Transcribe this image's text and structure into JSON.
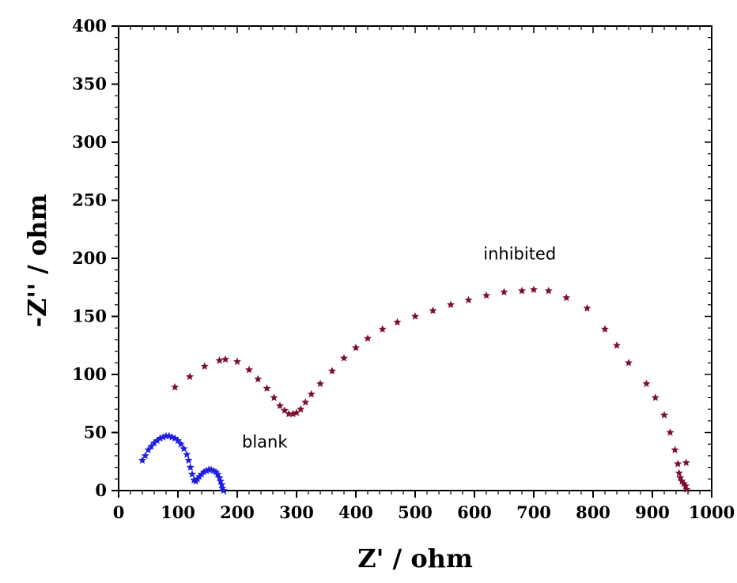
{
  "chart_data": {
    "type": "scatter",
    "xlabel": "Z' / ohm",
    "ylabel": "-Z'' / ohm",
    "xlim": [
      0,
      1000
    ],
    "ylim": [
      0,
      400
    ],
    "xticks": [
      "0",
      "100",
      "200",
      "300",
      "400",
      "500",
      "600",
      "700",
      "800",
      "900",
      "1000"
    ],
    "yticks": [
      "0",
      "50",
      "100",
      "150",
      "200",
      "250",
      "300",
      "350",
      "400"
    ],
    "grid": false,
    "legend": "none",
    "series": [
      {
        "color": "#1f1fe0",
        "marker": "star",
        "points": [
          [
            40,
            26
          ],
          [
            45,
            30
          ],
          [
            50,
            35
          ],
          [
            55,
            38
          ],
          [
            60,
            41
          ],
          [
            65,
            43
          ],
          [
            70,
            45
          ],
          [
            75,
            46
          ],
          [
            80,
            47
          ],
          [
            85,
            47
          ],
          [
            90,
            46
          ],
          [
            95,
            45
          ],
          [
            100,
            43
          ],
          [
            105,
            40
          ],
          [
            110,
            36
          ],
          [
            115,
            31
          ],
          [
            118,
            26
          ],
          [
            121,
            20
          ],
          [
            124,
            14
          ],
          [
            127,
            9
          ],
          [
            130,
            8
          ],
          [
            133,
            10
          ],
          [
            136,
            12
          ],
          [
            140,
            14
          ],
          [
            144,
            16
          ],
          [
            148,
            17
          ],
          [
            152,
            18
          ],
          [
            156,
            18
          ],
          [
            160,
            17
          ],
          [
            164,
            16
          ],
          [
            167,
            14
          ],
          [
            170,
            11
          ],
          [
            172,
            8
          ],
          [
            174,
            5
          ],
          [
            175,
            2
          ],
          [
            177,
            0
          ]
        ]
      },
      {
        "color": "#7a0f2e",
        "marker": "star",
        "points": [
          [
            95,
            89
          ],
          [
            120,
            98
          ],
          [
            145,
            107
          ],
          [
            170,
            112
          ],
          [
            180,
            113
          ],
          [
            200,
            111
          ],
          [
            220,
            104
          ],
          [
            235,
            96
          ],
          [
            250,
            88
          ],
          [
            262,
            80
          ],
          [
            272,
            73
          ],
          [
            280,
            69
          ],
          [
            287,
            66
          ],
          [
            294,
            66
          ],
          [
            300,
            67
          ],
          [
            307,
            70
          ],
          [
            315,
            76
          ],
          [
            325,
            83
          ],
          [
            340,
            92
          ],
          [
            360,
            103
          ],
          [
            380,
            114
          ],
          [
            400,
            123
          ],
          [
            420,
            131
          ],
          [
            445,
            139
          ],
          [
            470,
            145
          ],
          [
            500,
            150
          ],
          [
            530,
            155
          ],
          [
            560,
            160
          ],
          [
            590,
            164
          ],
          [
            620,
            168
          ],
          [
            650,
            171
          ],
          [
            680,
            172
          ],
          [
            700,
            173
          ],
          [
            725,
            172
          ],
          [
            755,
            166
          ],
          [
            790,
            157
          ],
          [
            820,
            139
          ],
          [
            840,
            125
          ],
          [
            860,
            110
          ],
          [
            890,
            92
          ],
          [
            905,
            80
          ],
          [
            920,
            65
          ],
          [
            930,
            50
          ],
          [
            938,
            35
          ],
          [
            943,
            23
          ],
          [
            945,
            15
          ],
          [
            947,
            11
          ],
          [
            950,
            8
          ],
          [
            953,
            6
          ],
          [
            956,
            4
          ],
          [
            958,
            1
          ],
          [
            957,
            24
          ]
        ]
      }
    ],
    "annotations": [
      {
        "text": "inhibited",
        "x": 615,
        "y": 199
      },
      {
        "text": "blank",
        "x": 208,
        "y": 37
      }
    ]
  }
}
